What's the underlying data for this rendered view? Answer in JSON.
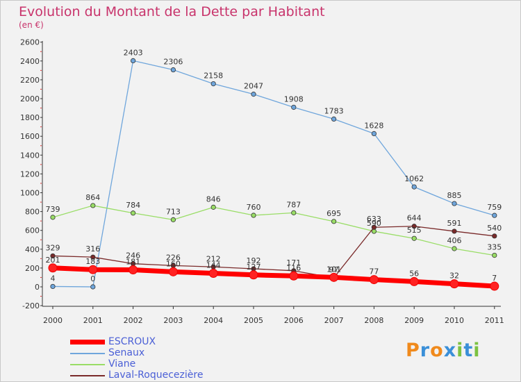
{
  "title": "Evolution du Montant de la Dette par Habitant",
  "unit": "(en €)",
  "logo_text": "Proxiti",
  "chart_data": {
    "type": "line",
    "title": "Evolution du Montant de la Dette par Habitant",
    "subtitle": "(en €)",
    "x": [
      "2000",
      "2001",
      "2002",
      "2003",
      "2004",
      "2005",
      "2006",
      "2007",
      "2008",
      "2009",
      "2010",
      "2011"
    ],
    "ylim": [
      -200,
      2600
    ],
    "yticks": [
      -200,
      0,
      200,
      400,
      600,
      800,
      1000,
      1200,
      1400,
      1600,
      1800,
      2000,
      2200,
      2400,
      2600
    ],
    "grid": false,
    "legend_position": "bottom-left",
    "series": [
      {
        "name": "ESCROUX",
        "color": "#ff0000",
        "values": [
          201,
          183,
          181,
          160,
          144,
          127,
          116,
          101,
          77,
          56,
          32,
          7
        ],
        "labels": [
          "201",
          "183",
          "181",
          "160",
          "144",
          "127",
          "116",
          "101",
          "77",
          "56",
          "32",
          "7"
        ]
      },
      {
        "name": "Senaux",
        "color": "#6fa6dc",
        "values": [
          4,
          0,
          2403,
          2306,
          2158,
          2047,
          1908,
          1783,
          1628,
          1062,
          885,
          759
        ],
        "labels": [
          "4",
          "0",
          "2403",
          "2306",
          "2158",
          "2047",
          "1908",
          "1783",
          "1628",
          "1062",
          "885",
          "759"
        ]
      },
      {
        "name": "Viane",
        "color": "#99dd66",
        "values": [
          739,
          864,
          784,
          713,
          846,
          760,
          787,
          695,
          590,
          515,
          406,
          335
        ],
        "labels": [
          "739",
          "864",
          "784",
          "713",
          "846",
          "760",
          "787",
          "695",
          "590",
          "515",
          "406",
          "335"
        ]
      },
      {
        "name": "Laval-Roquecezière",
        "color": "#7a2a2a",
        "values": [
          329,
          316,
          246,
          226,
          212,
          192,
          171,
          97,
          633,
          644,
          591,
          540
        ],
        "labels": [
          "329",
          "316",
          "246",
          "226",
          "212",
          "192",
          "171",
          "97",
          "633",
          "644",
          "591",
          "540"
        ]
      }
    ]
  }
}
